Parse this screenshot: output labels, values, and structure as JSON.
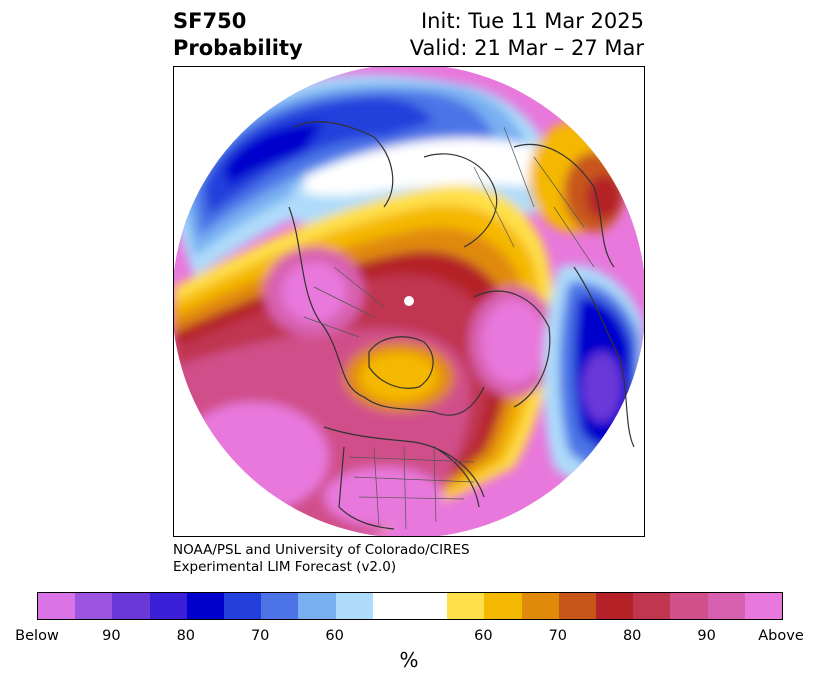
{
  "title": {
    "variable": "SF750",
    "subtitle": "Probability",
    "init": "Init: Tue 11 Mar 2025",
    "valid": "Valid: 21 Mar – 27 Mar"
  },
  "credit": {
    "line1": "NOAA/PSL and University of Colorado/CIRES",
    "line2": "Experimental LIM Forecast (v2.0)"
  },
  "colorbar": {
    "unit": "%",
    "colors": [
      "#d973e6",
      "#9b55e0",
      "#6b38d8",
      "#3a1fd6",
      "#0000cc",
      "#2440dc",
      "#4c74e6",
      "#78b0f2",
      "#aedcfa",
      "#ffffff",
      "#ffffff",
      "#ffe04a",
      "#f5b800",
      "#e08a0c",
      "#c8561a",
      "#b42228",
      "#c03650",
      "#d0508a",
      "#d860b0",
      "#e878dc"
    ],
    "ticks": [
      {
        "label": "Below",
        "index": 0
      },
      {
        "label": "90",
        "index": 2
      },
      {
        "label": "80",
        "index": 4
      },
      {
        "label": "70",
        "index": 6
      },
      {
        "label": "60",
        "index": 8
      },
      {
        "label": "60",
        "index": 12
      },
      {
        "label": "70",
        "index": 14
      },
      {
        "label": "80",
        "index": 16
      },
      {
        "label": "90",
        "index": 18
      },
      {
        "label": "Above",
        "index": 20
      }
    ]
  }
}
